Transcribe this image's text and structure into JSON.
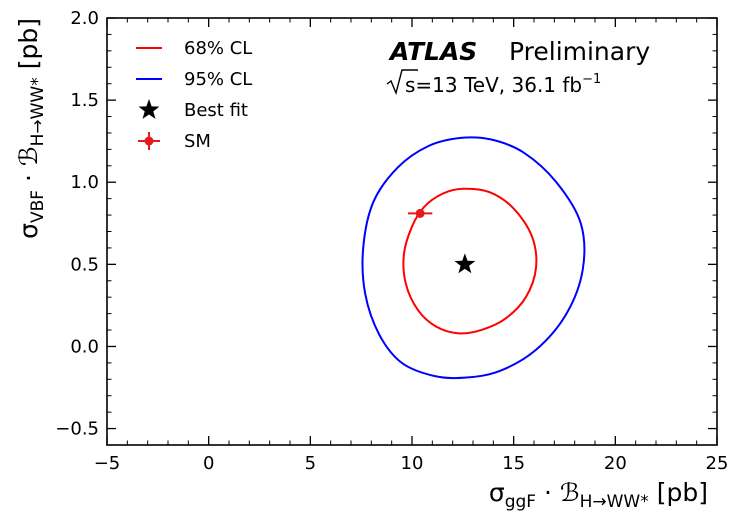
{
  "chart_data": {
    "type": "contour",
    "xlabel": {
      "main": "σ",
      "sub": "ggF",
      "mid": " · ℬ",
      "sub2": "H→WW*",
      "unit": "[pb]"
    },
    "ylabel": {
      "main": "σ",
      "sub": "VBF",
      "mid": " · ℬ",
      "sub2": "H→WW*",
      "unit": "[pb]"
    },
    "xlim": [
      -5,
      25
    ],
    "ylim": [
      -0.6,
      2.0
    ],
    "xticks": [
      -5,
      0,
      5,
      10,
      15,
      20,
      25
    ],
    "yticks": [
      -0.5,
      0.0,
      0.5,
      1.0,
      1.5,
      2.0
    ],
    "xtick_labels": [
      "−5",
      "0",
      "5",
      "10",
      "15",
      "20",
      "25"
    ],
    "ytick_labels": [
      "−0.5",
      "0.0",
      "0.5",
      "1.0",
      "1.5",
      "2.0"
    ],
    "experiment": "ATLAS",
    "status": "Preliminary",
    "energy_label": "s=13 TeV, 36.1 fb",
    "energy_sup": "−1",
    "legend_position": "top-left",
    "legend": [
      {
        "label": "68% CL",
        "kind": "line",
        "color": "#ff0000"
      },
      {
        "label": "95% CL",
        "kind": "line",
        "color": "#0000ff"
      },
      {
        "label": "Best fit",
        "kind": "star",
        "color": "#000000"
      },
      {
        "label": "SM",
        "kind": "errorpoint",
        "color": "#e41a1c"
      }
    ],
    "best_fit": {
      "x": 12.6,
      "y": 0.5
    },
    "sm_point": {
      "x": 10.4,
      "y": 0.81,
      "xerr": 0.6
    },
    "contours": [
      {
        "name": "68% CL",
        "color": "#ff0000",
        "points": [
          [
            12.5,
            0.96
          ],
          [
            11.5,
            0.93
          ],
          [
            10.6,
            0.85
          ],
          [
            10.0,
            0.73
          ],
          [
            9.6,
            0.56
          ],
          [
            9.7,
            0.38
          ],
          [
            10.3,
            0.22
          ],
          [
            11.2,
            0.12
          ],
          [
            12.3,
            0.08
          ],
          [
            13.4,
            0.1
          ],
          [
            14.6,
            0.17
          ],
          [
            15.6,
            0.3
          ],
          [
            16.1,
            0.48
          ],
          [
            15.9,
            0.67
          ],
          [
            15.0,
            0.84
          ],
          [
            13.8,
            0.94
          ]
        ]
      },
      {
        "name": "95% CL",
        "color": "#0000ff",
        "points": [
          [
            12.4,
            1.27
          ],
          [
            10.8,
            1.22
          ],
          [
            9.3,
            1.09
          ],
          [
            8.1,
            0.88
          ],
          [
            7.6,
            0.6
          ],
          [
            7.7,
            0.32
          ],
          [
            8.4,
            0.07
          ],
          [
            9.5,
            -0.1
          ],
          [
            11.1,
            -0.18
          ],
          [
            12.6,
            -0.19
          ],
          [
            14.3,
            -0.15
          ],
          [
            16.1,
            -0.02
          ],
          [
            17.6,
            0.2
          ],
          [
            18.4,
            0.47
          ],
          [
            18.3,
            0.75
          ],
          [
            17.1,
            1.0
          ],
          [
            15.5,
            1.18
          ],
          [
            13.9,
            1.26
          ]
        ]
      }
    ]
  }
}
